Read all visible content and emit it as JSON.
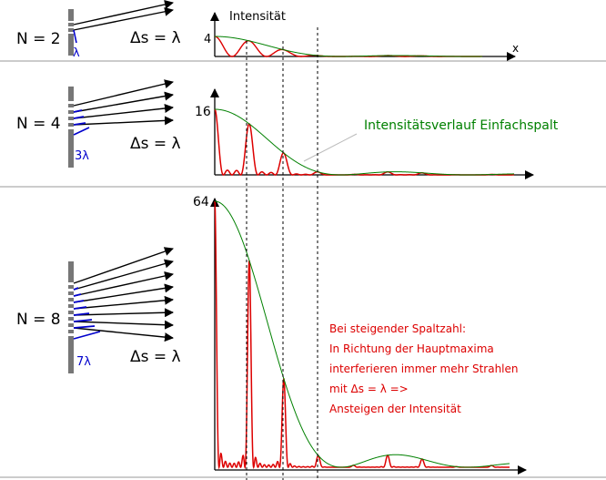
{
  "panels": [
    {
      "n_label": "N = 2",
      "path_label": "λ",
      "ds_label": "Δs = λ",
      "intensity_label": "4"
    },
    {
      "n_label": "N = 4",
      "path_label": "3λ",
      "ds_label": "Δs = λ",
      "intensity_label": "16"
    },
    {
      "n_label": "N = 8",
      "path_label": "7λ",
      "ds_label": "Δs = λ",
      "intensity_label": "64"
    }
  ],
  "axis": {
    "y_label": "Intensität",
    "x_label": "x"
  },
  "envelope_label": "Intensitätsverlauf Einfachspalt",
  "note_lines": [
    "Bei steigender Spaltzahl:",
    "In Richtung der Hauptmaxima",
    "interferieren immer mehr Strahlen",
    "mit Δs = λ =>",
    "Ansteigen der Intensität"
  ],
  "colors": {
    "curve": "#dd0000",
    "envelope": "#008000",
    "path": "#0000cc",
    "text": "#000000"
  }
}
